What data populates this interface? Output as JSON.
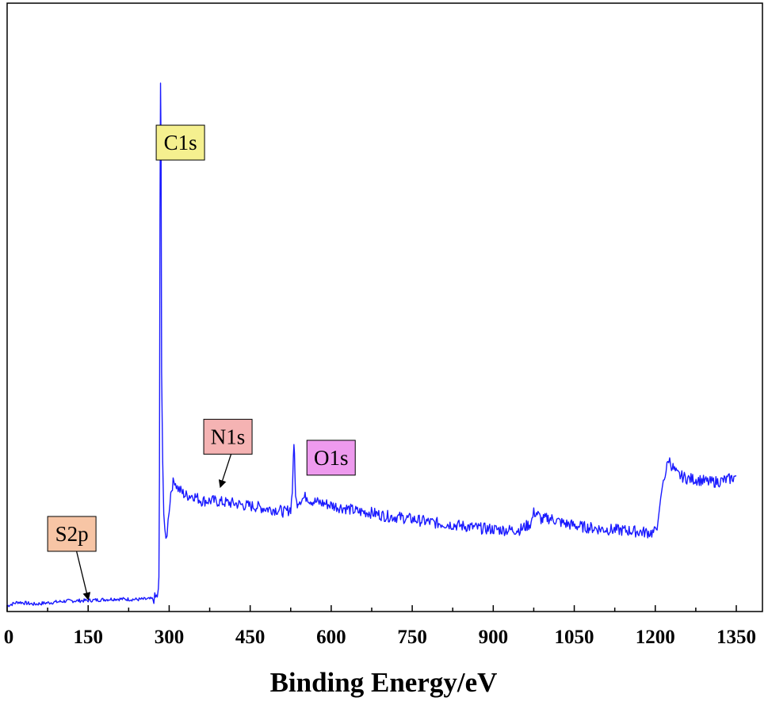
{
  "chart_data": {
    "type": "line",
    "title": "",
    "xlabel": "Binding Energy/eV",
    "ylabel": "",
    "xlim": [
      0,
      1400
    ],
    "ylim": [
      0,
      100
    ],
    "y_ticks_shown": false,
    "grid": false,
    "x_ticks": [
      0,
      150,
      300,
      450,
      600,
      750,
      900,
      1050,
      1200,
      1350
    ],
    "series": [
      {
        "name": "",
        "color": "#1a1aff",
        "x": [
          0,
          20,
          50,
          80,
          110,
          150,
          200,
          240,
          270,
          275,
          278,
          280,
          281,
          282,
          283,
          284,
          285,
          286,
          288,
          290,
          292,
          294,
          296,
          298,
          300,
          303,
          306,
          310,
          315,
          320,
          330,
          345,
          360,
          380,
          400,
          420,
          440,
          460,
          480,
          500,
          515,
          525,
          528,
          530,
          531,
          532,
          533,
          534,
          536,
          540,
          545,
          550,
          555,
          560,
          570,
          590,
          610,
          630,
          650,
          670,
          700,
          730,
          760,
          790,
          820,
          850,
          880,
          910,
          930,
          950,
          960,
          970,
          975,
          980,
          990,
          1000,
          1010,
          1030,
          1060,
          1100,
          1150,
          1180,
          1195,
          1200,
          1205,
          1210,
          1215,
          1220,
          1225,
          1230,
          1240,
          1260,
          1280,
          1300,
          1320,
          1340,
          1350
        ],
        "y": [
          0.5,
          1.2,
          0.8,
          1.1,
          1.4,
          1.5,
          1.8,
          1.7,
          1.8,
          2.0,
          2.4,
          3.2,
          6.0,
          25.0,
          75.0,
          100.0,
          88.0,
          45.0,
          28.0,
          18.0,
          14.0,
          13.0,
          14.5,
          16.5,
          19.0,
          22.0,
          23.5,
          24.5,
          23.0,
          22.5,
          21.5,
          21.5,
          20.5,
          20.5,
          20.2,
          20.0,
          19.6,
          19.4,
          19.0,
          18.8,
          18.3,
          19.0,
          22.0,
          29.5,
          30.2,
          29.5,
          25.0,
          21.0,
          20.0,
          20.6,
          20.8,
          21.0,
          21.4,
          20.7,
          20.3,
          19.9,
          19.4,
          19.0,
          18.4,
          18.3,
          17.6,
          17.3,
          16.8,
          16.3,
          16.0,
          15.6,
          15.2,
          15.0,
          14.9,
          15.0,
          15.6,
          16.2,
          18.2,
          18.2,
          16.8,
          17.2,
          17.0,
          16.2,
          15.6,
          15.1,
          14.8,
          14.5,
          14.4,
          14.6,
          16.5,
          21.0,
          24.5,
          26.2,
          28.5,
          27.3,
          25.5,
          24.7,
          24.5,
          24.0,
          24.2,
          24.7,
          25.2
        ]
      }
    ],
    "annotations": [
      {
        "text": "C1s",
        "color": "#f5f08f",
        "x": 276,
        "y": 92,
        "arrow": false
      },
      {
        "text": "N1s",
        "color": "#f5b3b3",
        "x": 364,
        "y": 36,
        "arrow_to": [
          395,
          23.2
        ],
        "arrow": true
      },
      {
        "text": "O1s",
        "color": "#ee9aee",
        "x": 555,
        "y": 32,
        "arrow": false
      },
      {
        "text": "S2p",
        "color": "#f7c5a5",
        "x": 75,
        "y": 17.5,
        "arrow_to": [
          150,
          1.8
        ],
        "arrow": true
      }
    ]
  }
}
